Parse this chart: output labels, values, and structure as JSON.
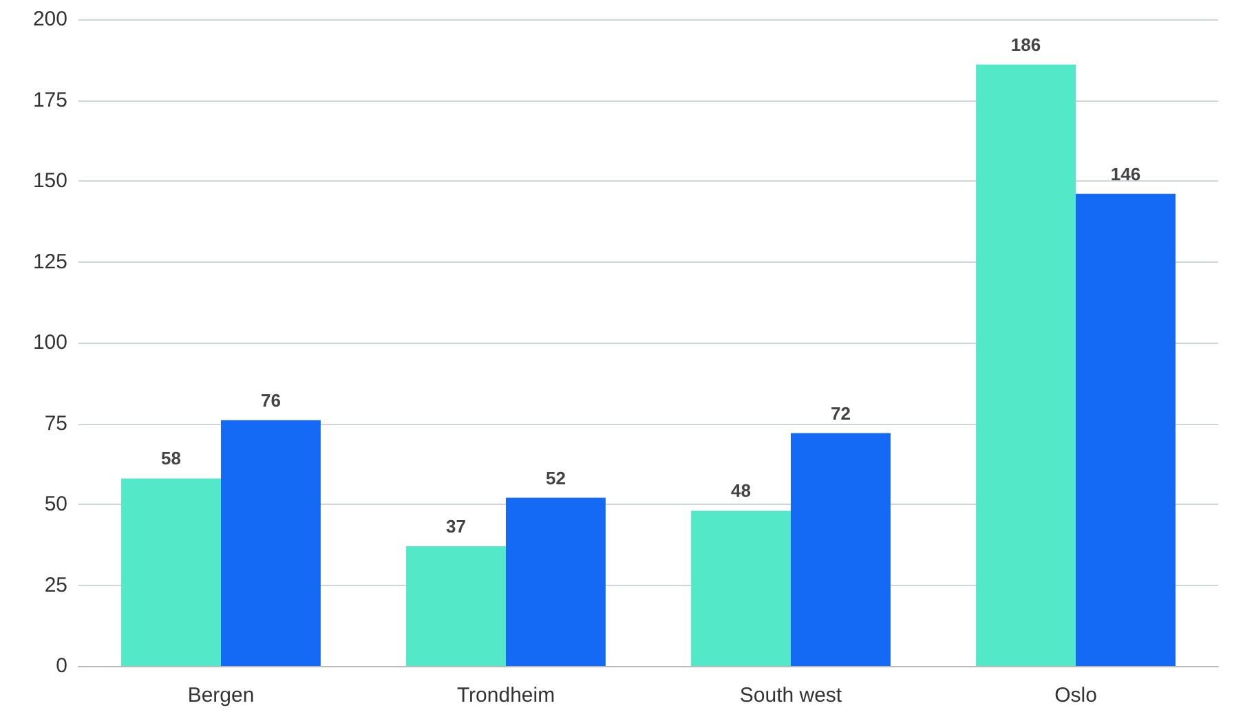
{
  "chart_data": {
    "type": "bar",
    "categories": [
      "Bergen",
      "Trondheim",
      "South west",
      "Oslo"
    ],
    "series": [
      {
        "color": "#52e8c8",
        "values": [
          58,
          37,
          48,
          186
        ]
      },
      {
        "color": "#1469f5",
        "values": [
          76,
          52,
          72,
          146
        ]
      }
    ],
    "ylim": [
      0,
      200
    ],
    "yticks": [
      0,
      25,
      50,
      75,
      100,
      125,
      150,
      175,
      200
    ],
    "grid": "y",
    "data_labels": true
  }
}
